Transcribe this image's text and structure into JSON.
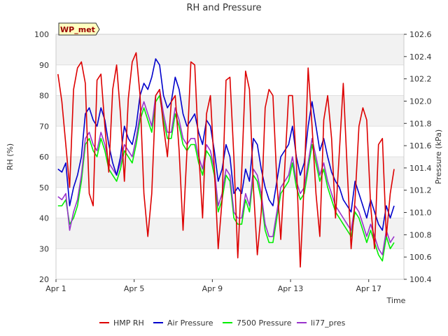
{
  "chart_data": {
    "type": "line",
    "title": "RH and Pressure",
    "xlabel": "Time",
    "ylabel_left": "RH (%)",
    "ylabel_right": "Pressure (kPa)",
    "station_label": "WP_met",
    "x_range": [
      "2023-04-01",
      "2023-04-18.8"
    ],
    "x_ticks": [
      {
        "label": "Apr 1",
        "day": 1
      },
      {
        "label": "Apr 5",
        "day": 5
      },
      {
        "label": "Apr 9",
        "day": 9
      },
      {
        "label": "Apr 13",
        "day": 13
      },
      {
        "label": "Apr 17",
        "day": 17
      }
    ],
    "y_left_range": [
      20,
      100
    ],
    "y_left_ticks": [
      "20",
      "30",
      "40",
      "50",
      "60",
      "70",
      "80",
      "90",
      "100"
    ],
    "y_right_range": [
      100.4,
      102.6
    ],
    "y_right_ticks": [
      "100.4",
      "100.6",
      "100.8",
      "101.0",
      "101.2",
      "101.4",
      "101.6",
      "101.8",
      "102.0",
      "102.2",
      "102.4",
      "102.6"
    ],
    "grid": true,
    "legend_position": "bottom",
    "series": [
      {
        "name": "HMP RH",
        "axis": "left",
        "color": "#dd0000",
        "x": [
          1.1,
          1.3,
          1.5,
          1.7,
          1.9,
          2.1,
          2.3,
          2.5,
          2.7,
          2.9,
          3.1,
          3.3,
          3.5,
          3.7,
          3.9,
          4.1,
          4.3,
          4.5,
          4.7,
          4.9,
          5.1,
          5.3,
          5.5,
          5.7,
          5.9,
          6.1,
          6.3,
          6.5,
          6.7,
          6.9,
          7.1,
          7.3,
          7.5,
          7.7,
          7.9,
          8.1,
          8.3,
          8.5,
          8.7,
          8.9,
          9.1,
          9.3,
          9.5,
          9.7,
          9.9,
          10.1,
          10.3,
          10.5,
          10.7,
          10.9,
          11.1,
          11.3,
          11.5,
          11.7,
          11.9,
          12.1,
          12.3,
          12.5,
          12.7,
          12.9,
          13.1,
          13.3,
          13.5,
          13.7,
          13.9,
          14.1,
          14.3,
          14.5,
          14.7,
          14.9,
          15.1,
          15.3,
          15.5,
          15.7,
          15.9,
          16.1,
          16.3,
          16.5,
          16.7,
          16.9,
          17.1,
          17.3,
          17.5,
          17.7,
          17.9,
          18.1,
          18.3
        ],
        "values": [
          87,
          78,
          64,
          50,
          82,
          89,
          91,
          84,
          48,
          44,
          85,
          87,
          70,
          55,
          82,
          90,
          74,
          52,
          79,
          91,
          94,
          80,
          48,
          34,
          48,
          80,
          82,
          70,
          60,
          78,
          80,
          62,
          36,
          62,
          91,
          90,
          62,
          40,
          74,
          80,
          56,
          30,
          46,
          85,
          86,
          60,
          27,
          55,
          88,
          82,
          50,
          28,
          42,
          76,
          82,
          80,
          52,
          33,
          56,
          80,
          80,
          58,
          24,
          52,
          89,
          70,
          48,
          34,
          72,
          80,
          66,
          40,
          62,
          84,
          56,
          30,
          46,
          70,
          76,
          72,
          44,
          30,
          64,
          66,
          34,
          48,
          56
        ]
      },
      {
        "name": "Air Pressure",
        "axis": "left",
        "color": "#0000cc",
        "x": [
          1.1,
          1.3,
          1.5,
          1.7,
          1.9,
          2.1,
          2.3,
          2.5,
          2.7,
          2.9,
          3.1,
          3.3,
          3.5,
          3.7,
          3.9,
          4.1,
          4.3,
          4.5,
          4.7,
          4.9,
          5.1,
          5.3,
          5.5,
          5.7,
          5.9,
          6.1,
          6.3,
          6.5,
          6.7,
          6.9,
          7.1,
          7.3,
          7.5,
          7.7,
          7.9,
          8.1,
          8.3,
          8.5,
          8.7,
          8.9,
          9.1,
          9.3,
          9.5,
          9.7,
          9.9,
          10.1,
          10.3,
          10.5,
          10.7,
          10.9,
          11.1,
          11.3,
          11.5,
          11.7,
          11.9,
          12.1,
          12.3,
          12.5,
          12.7,
          12.9,
          13.1,
          13.3,
          13.5,
          13.7,
          13.9,
          14.1,
          14.3,
          14.5,
          14.7,
          14.9,
          15.1,
          15.3,
          15.5,
          15.7,
          15.9,
          16.1,
          16.3,
          16.5,
          16.7,
          16.9,
          17.1,
          17.3,
          17.5,
          17.7,
          17.9,
          18.1,
          18.3
        ],
        "values": [
          56,
          55,
          58,
          44,
          50,
          54,
          60,
          74,
          76,
          72,
          70,
          76,
          72,
          64,
          58,
          54,
          60,
          70,
          66,
          64,
          70,
          80,
          84,
          82,
          86,
          92,
          90,
          80,
          76,
          78,
          86,
          82,
          74,
          70,
          72,
          74,
          68,
          64,
          72,
          70,
          62,
          52,
          56,
          64,
          60,
          48,
          50,
          48,
          56,
          52,
          66,
          64,
          56,
          50,
          46,
          44,
          52,
          60,
          62,
          64,
          70,
          60,
          54,
          58,
          70,
          78,
          70,
          62,
          66,
          60,
          55,
          52,
          50,
          46,
          44,
          42,
          52,
          48,
          44,
          40,
          46,
          42,
          38,
          36,
          44,
          40,
          44
        ]
      },
      {
        "name": "7500 Pressure",
        "axis": "left",
        "color": "#00ee00",
        "x": [
          1.1,
          1.3,
          1.5,
          1.7,
          1.9,
          2.1,
          2.3,
          2.5,
          2.7,
          2.9,
          3.1,
          3.3,
          3.5,
          3.7,
          3.9,
          4.1,
          4.3,
          4.5,
          4.7,
          4.9,
          5.1,
          5.3,
          5.5,
          5.7,
          5.9,
          6.1,
          6.3,
          6.5,
          6.7,
          6.9,
          7.1,
          7.3,
          7.5,
          7.7,
          7.9,
          8.1,
          8.3,
          8.5,
          8.7,
          8.9,
          9.1,
          9.3,
          9.5,
          9.7,
          9.9,
          10.1,
          10.3,
          10.5,
          10.7,
          10.9,
          11.1,
          11.3,
          11.5,
          11.7,
          11.9,
          12.1,
          12.3,
          12.5,
          12.7,
          12.9,
          13.1,
          13.3,
          13.5,
          13.7,
          13.9,
          14.1,
          14.3,
          14.5,
          14.7,
          14.9,
          15.1,
          15.3,
          15.5,
          15.7,
          15.9,
          16.1,
          16.3,
          16.5,
          16.7,
          16.9,
          17.1,
          17.3,
          17.5,
          17.7,
          17.9,
          18.1,
          18.3
        ],
        "values": [
          44,
          44,
          46,
          38,
          40,
          44,
          52,
          64,
          66,
          62,
          60,
          66,
          62,
          56,
          54,
          52,
          56,
          62,
          60,
          58,
          64,
          72,
          76,
          72,
          68,
          78,
          80,
          72,
          66,
          66,
          74,
          70,
          64,
          62,
          64,
          64,
          58,
          54,
          62,
          60,
          54,
          42,
          46,
          54,
          52,
          40,
          38,
          38,
          46,
          42,
          54,
          52,
          46,
          36,
          32,
          32,
          40,
          48,
          50,
          52,
          58,
          50,
          46,
          48,
          56,
          64,
          58,
          52,
          56,
          50,
          46,
          42,
          40,
          38,
          36,
          34,
          42,
          40,
          36,
          32,
          36,
          32,
          28,
          26,
          34,
          30,
          32
        ]
      },
      {
        "name": "li77_pres",
        "axis": "left",
        "color": "#9933cc",
        "x": [
          1.1,
          1.3,
          1.5,
          1.7,
          1.9,
          2.1,
          2.3,
          2.5,
          2.7,
          2.9,
          3.1,
          3.3,
          3.5,
          3.7,
          3.9,
          4.1,
          4.3,
          4.5,
          4.7,
          4.9,
          5.1,
          5.3,
          5.5,
          5.7,
          5.9,
          6.1,
          6.3,
          6.5,
          6.7,
          6.9,
          7.1,
          7.3,
          7.5,
          7.7,
          7.9,
          8.1,
          8.3,
          8.5,
          8.7,
          8.9,
          9.1,
          9.3,
          9.5,
          9.7,
          9.9,
          10.1,
          10.3,
          10.5,
          10.7,
          10.9,
          11.1,
          11.3,
          11.5,
          11.7,
          11.9,
          12.1,
          12.3,
          12.5,
          12.7,
          12.9,
          13.1,
          13.3,
          13.5,
          13.7,
          13.9,
          14.1,
          14.3,
          14.5,
          14.7,
          14.9,
          15.1,
          15.3,
          15.5,
          15.7,
          15.9,
          16.1,
          16.3,
          16.5,
          16.7,
          16.9,
          17.1,
          17.3,
          17.5,
          17.7,
          17.9,
          18.1,
          18.3
        ],
        "values": [
          47,
          46,
          48,
          36,
          42,
          46,
          54,
          66,
          68,
          64,
          62,
          68,
          64,
          58,
          56,
          54,
          58,
          64,
          62,
          60,
          66,
          74,
          78,
          74,
          70,
          80,
          82,
          74,
          68,
          68,
          76,
          72,
          66,
          64,
          66,
          66,
          60,
          56,
          64,
          62,
          56,
          44,
          48,
          56,
          54,
          42,
          40,
          40,
          48,
          44,
          56,
          54,
          48,
          38,
          34,
          34,
          42,
          50,
          52,
          54,
          60,
          52,
          48,
          50,
          58,
          66,
          60,
          54,
          58,
          52,
          48,
          44,
          42,
          40,
          38,
          36,
          44,
          42,
          38,
          34,
          38,
          34,
          30,
          28,
          36,
          32,
          34
        ]
      }
    ]
  }
}
